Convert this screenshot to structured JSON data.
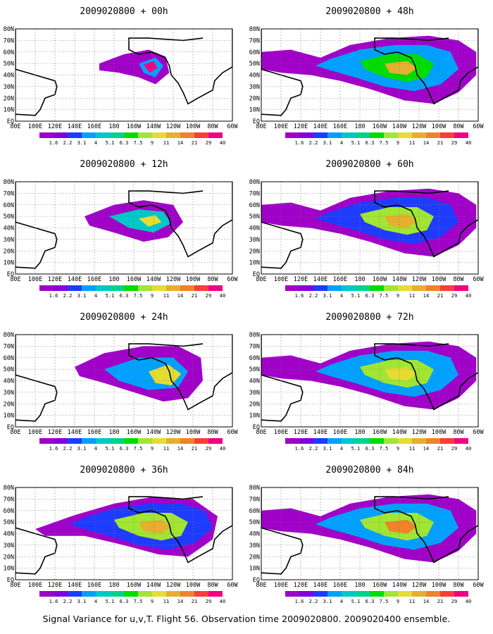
{
  "caption": "Signal Variance for u,v,T. Flight 56. Observation time 2009020800. 2009020400 ensemble.",
  "chart_data": {
    "type": "heatmap",
    "map": {
      "lon_ticks": [
        "80E",
        "100E",
        "120E",
        "140E",
        "160E",
        "180",
        "160W",
        "140W",
        "120W",
        "100W",
        "80W",
        "60W"
      ],
      "lat_ticks": [
        "EQ",
        "10N",
        "20N",
        "30N",
        "40N",
        "50N",
        "60N",
        "70N",
        "80N"
      ],
      "lon_range": [
        80,
        300
      ],
      "lat_range": [
        0,
        80
      ],
      "grid": true
    },
    "colorbar": {
      "labels": [
        "1.6",
        "2.2",
        "3.1",
        "4",
        "5.1",
        "6.3",
        "7.5",
        "9",
        "11",
        "14",
        "21",
        "29",
        "40"
      ],
      "colors": [
        "#a000c8",
        "#8200dc",
        "#1e3cff",
        "#00a0ff",
        "#00c8c8",
        "#00d28c",
        "#00dc00",
        "#a0e632",
        "#e6dc32",
        "#e6af2d",
        "#f08228",
        "#fa3c3c",
        "#f00082"
      ]
    },
    "panels": [
      {
        "title": "2009020800 + 00h",
        "lead_hours": 0
      },
      {
        "title": "2009020800 + 48h",
        "lead_hours": 48
      },
      {
        "title": "2009020800 + 12h",
        "lead_hours": 12
      },
      {
        "title": "2009020800 + 60h",
        "lead_hours": 60
      },
      {
        "title": "2009020800 + 24h",
        "lead_hours": 24
      },
      {
        "title": "2009020800 + 72h",
        "lead_hours": 72
      },
      {
        "title": "2009020800 + 36h",
        "lead_hours": 36
      },
      {
        "title": "2009020800 + 84h",
        "lead_hours": 84
      }
    ]
  }
}
